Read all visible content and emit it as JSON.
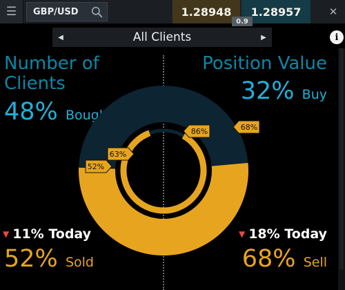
{
  "topbar": {
    "menu_icon": "hamburger-icon",
    "pair": "GBP/USD",
    "search_icon": "search-icon",
    "bid": "1.28948",
    "ask": "1.28957",
    "spread": "0.9",
    "close_icon": "close-icon"
  },
  "nav": {
    "prev_glyph": "◀",
    "title": "All Clients",
    "next_glyph": "▶",
    "info_glyph": "i"
  },
  "clients": {
    "title_line1": "Number of",
    "title_line2": "Clients",
    "bought_pct": "48%",
    "bought_label": "Bought",
    "today_change": "11% Today",
    "sold_pct": "52%",
    "sold_label": "Sold"
  },
  "position": {
    "title": "Position Value",
    "buy_pct": "32%",
    "buy_label": "Buy",
    "today_change": "18% Today",
    "sell_pct": "68%",
    "sell_label": "Sell"
  },
  "chart_data": {
    "type": "pie",
    "outer_ring": {
      "segments": [
        {
          "label": "Bought",
          "value": 48
        },
        {
          "label": "Sold",
          "value": 52
        }
      ]
    },
    "callouts": [
      {
        "label": "52%"
      },
      {
        "label": "63%"
      },
      {
        "label": "86%"
      },
      {
        "label": "68%"
      }
    ],
    "inner_ring": {
      "value": 0.86
    }
  },
  "colors": {
    "accent_blue": "#1fb1da",
    "title_blue": "#0e86a6",
    "gold": "#e7a51f",
    "ring_dark": "#0d2432",
    "down_red": "#e64a3e"
  }
}
